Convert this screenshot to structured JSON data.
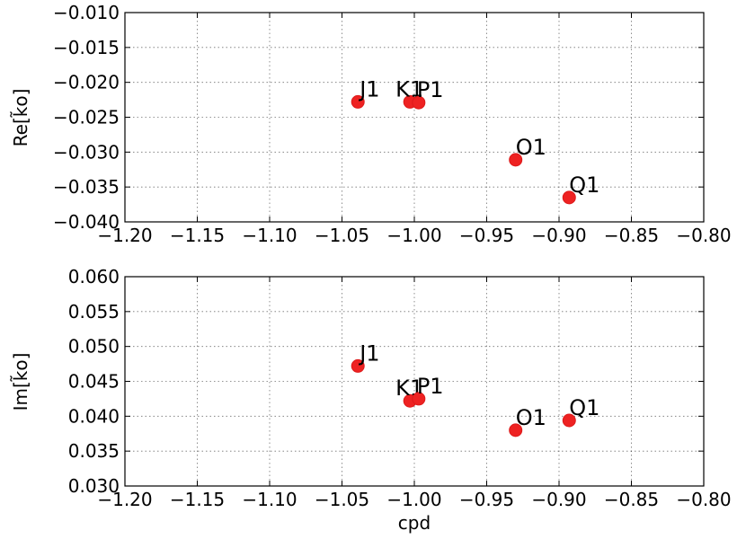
{
  "chart_data": [
    {
      "type": "scatter",
      "ylabel": "Re[k̃o]",
      "xlabel": "",
      "xlim": [
        -1.2,
        -0.8
      ],
      "ylim": [
        -0.04,
        -0.01
      ],
      "grid": true,
      "marker_color": "#ee2222",
      "xticks": [
        "−1.20",
        "−1.15",
        "−1.10",
        "−1.05",
        "−1.00",
        "−0.95",
        "−0.90",
        "−0.85",
        "−0.80"
      ],
      "yticks": [
        "−0.010",
        "−0.015",
        "−0.020",
        "−0.025",
        "−0.030",
        "−0.035",
        "−0.040"
      ],
      "points": [
        {
          "label": "J1",
          "x": -1.039,
          "y": -0.0228
        },
        {
          "label": "K1",
          "x": -1.003,
          "y": -0.0228
        },
        {
          "label": "P1",
          "x": -0.997,
          "y": -0.0229
        },
        {
          "label": "O1",
          "x": -0.93,
          "y": -0.0311
        },
        {
          "label": "Q1",
          "x": -0.893,
          "y": -0.0365
        }
      ]
    },
    {
      "type": "scatter",
      "ylabel": "Im[k̃o]",
      "xlabel": "cpd",
      "xlim": [
        -1.2,
        -0.8
      ],
      "ylim": [
        0.03,
        0.06
      ],
      "grid": true,
      "marker_color": "#ee2222",
      "xticks": [
        "−1.20",
        "−1.15",
        "−1.10",
        "−1.05",
        "−1.00",
        "−0.95",
        "−0.90",
        "−0.85",
        "−0.80"
      ],
      "yticks": [
        "0.060",
        "0.055",
        "0.050",
        "0.045",
        "0.040",
        "0.035",
        "0.030"
      ],
      "points": [
        {
          "label": "J1",
          "x": -1.039,
          "y": 0.0472
        },
        {
          "label": "K1",
          "x": -1.003,
          "y": 0.0422
        },
        {
          "label": "P1",
          "x": -0.997,
          "y": 0.0425
        },
        {
          "label": "O1",
          "x": -0.93,
          "y": 0.038
        },
        {
          "label": "Q1",
          "x": -0.893,
          "y": 0.0394
        }
      ]
    }
  ]
}
